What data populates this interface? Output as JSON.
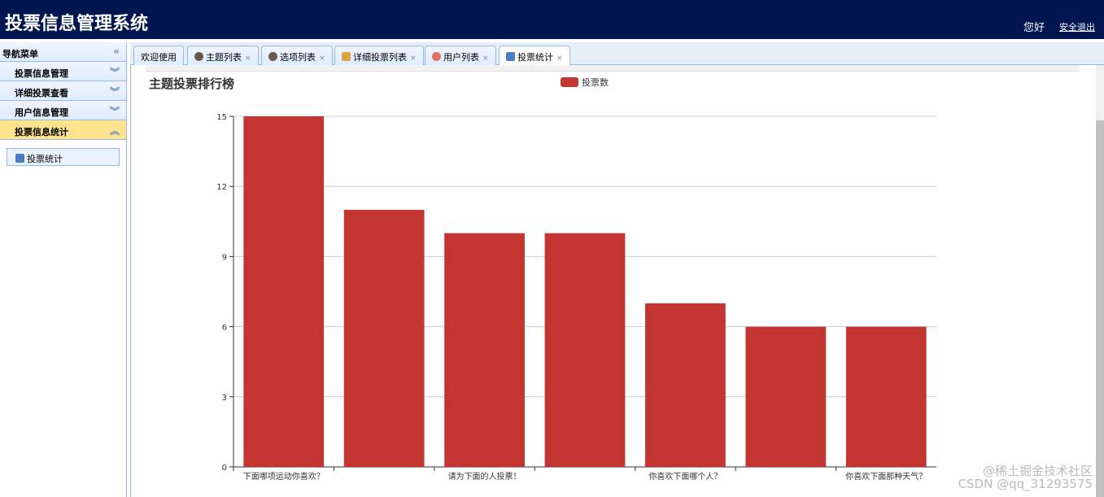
{
  "header": {
    "title": "投票信息管理系统",
    "greeting": "您好",
    "logout": "安全退出"
  },
  "sidebar": {
    "title": "导航菜单",
    "items": [
      {
        "label": "投票信息管理"
      },
      {
        "label": "详细投票查看"
      },
      {
        "label": "用户信息管理"
      },
      {
        "label": "投票信息统计",
        "active": true
      }
    ],
    "sub_item": "投票统计"
  },
  "tabs": [
    {
      "label": "欢迎使用",
      "icon": ""
    },
    {
      "label": "主题列表",
      "icon": "user-icon"
    },
    {
      "label": "选项列表",
      "icon": "user-icon"
    },
    {
      "label": "详细投票列表",
      "icon": "home-icon"
    },
    {
      "label": "用户列表",
      "icon": "user-red-icon"
    },
    {
      "label": "投票统计",
      "icon": "book-icon",
      "selected": true
    }
  ],
  "watermark": {
    "line1": "@稀土掘金技术社区",
    "line2": "CSDN @qq_31293575"
  },
  "chart_data": {
    "type": "bar",
    "title": "主题投票排行榜",
    "legend": [
      "投票数"
    ],
    "legend_position": "top-center",
    "categories": [
      "下面哪项运动你喜欢？",
      "",
      "请为下面的人投票！",
      "",
      "你喜欢下面哪个人？",
      "",
      "你喜欢下面那种天气？"
    ],
    "series": [
      {
        "name": "投票数",
        "values": [
          15,
          11,
          10,
          10,
          7,
          6,
          6
        ],
        "color": "#c23531"
      }
    ],
    "ylim": [
      0,
      15
    ],
    "yticks": [
      0,
      3,
      6,
      9,
      12,
      15
    ],
    "grid": true
  }
}
